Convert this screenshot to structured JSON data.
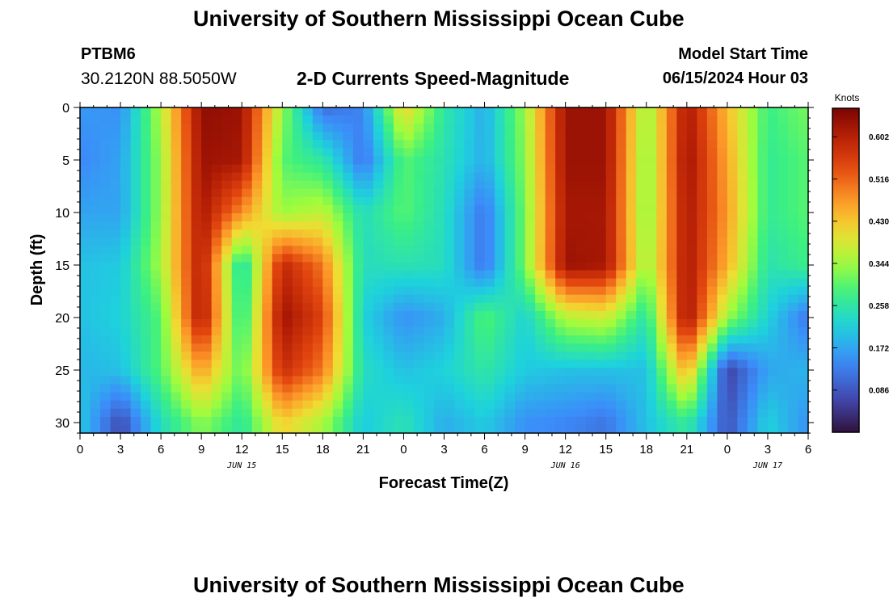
{
  "header": {
    "title": "University of Southern Mississippi Ocean Cube",
    "station": "PTBM6",
    "coordinates": "30.2120N  88.5050W",
    "subtitle": "2-D Currents Speed-Magnitude",
    "model_start_label": "Model Start Time",
    "model_start_value": "06/15/2024 Hour 03"
  },
  "footer": {
    "title": "University of Southern Mississippi Ocean Cube"
  },
  "chart_data": {
    "type": "heatmap",
    "title": "2-D Currents Speed-Magnitude",
    "xlabel": "Forecast Time(Z)",
    "ylabel": "Depth (ft)",
    "x_ticks": [
      "0",
      "3",
      "6",
      "9",
      "12",
      "15",
      "18",
      "21",
      "0",
      "3",
      "6",
      "9",
      "12",
      "15",
      "18",
      "21",
      "0",
      "3",
      "6"
    ],
    "x_range_hours": [
      0,
      54
    ],
    "date_labels": [
      {
        "label": "JUN 15",
        "hour": 12
      },
      {
        "label": "JUN 16",
        "hour": 36
      },
      {
        "label": "JUN 17",
        "hour": 51
      }
    ],
    "y_ticks": [
      0,
      5,
      10,
      15,
      20,
      25,
      30
    ],
    "y_range_ft": [
      0,
      31
    ],
    "y_inverted": true,
    "colorbar": {
      "label": "Knots",
      "ticks": [
        "0.602",
        "0.516",
        "0.430",
        "0.344",
        "0.258",
        "0.172",
        "0.086"
      ],
      "range": [
        0.0,
        0.66
      ]
    },
    "grid": {
      "x_hours": [
        0,
        3,
        6,
        9,
        12,
        15,
        18,
        21,
        24,
        27,
        30,
        33,
        36,
        39,
        42,
        45,
        48,
        51,
        54
      ],
      "y_ft": [
        0,
        5,
        10,
        15,
        20,
        25,
        30
      ],
      "values_knots": [
        [
          0.16,
          0.15,
          0.36,
          0.64,
          0.63,
          0.34,
          0.11,
          0.14,
          0.42,
          0.26,
          0.18,
          0.34,
          0.63,
          0.63,
          0.33,
          0.62,
          0.44,
          0.28,
          0.32
        ],
        [
          0.14,
          0.17,
          0.34,
          0.63,
          0.62,
          0.3,
          0.26,
          0.12,
          0.3,
          0.25,
          0.18,
          0.33,
          0.63,
          0.63,
          0.32,
          0.63,
          0.46,
          0.27,
          0.3
        ],
        [
          0.17,
          0.17,
          0.34,
          0.62,
          0.48,
          0.34,
          0.37,
          0.24,
          0.3,
          0.24,
          0.12,
          0.32,
          0.62,
          0.62,
          0.32,
          0.62,
          0.47,
          0.27,
          0.3
        ],
        [
          0.2,
          0.21,
          0.35,
          0.61,
          0.23,
          0.59,
          0.5,
          0.24,
          0.25,
          0.24,
          0.12,
          0.32,
          0.63,
          0.62,
          0.33,
          0.62,
          0.45,
          0.25,
          0.28
        ],
        [
          0.2,
          0.22,
          0.3,
          0.62,
          0.25,
          0.63,
          0.55,
          0.22,
          0.15,
          0.18,
          0.3,
          0.22,
          0.36,
          0.38,
          0.25,
          0.63,
          0.34,
          0.22,
          0.12
        ],
        [
          0.19,
          0.2,
          0.3,
          0.47,
          0.3,
          0.58,
          0.5,
          0.24,
          0.2,
          0.22,
          0.26,
          0.21,
          0.2,
          0.2,
          0.2,
          0.46,
          0.06,
          0.17,
          0.19
        ],
        [
          0.21,
          0.07,
          0.24,
          0.33,
          0.26,
          0.42,
          0.35,
          0.21,
          0.25,
          0.18,
          0.21,
          0.15,
          0.14,
          0.12,
          0.2,
          0.27,
          0.08,
          0.22,
          0.15
        ]
      ]
    }
  }
}
